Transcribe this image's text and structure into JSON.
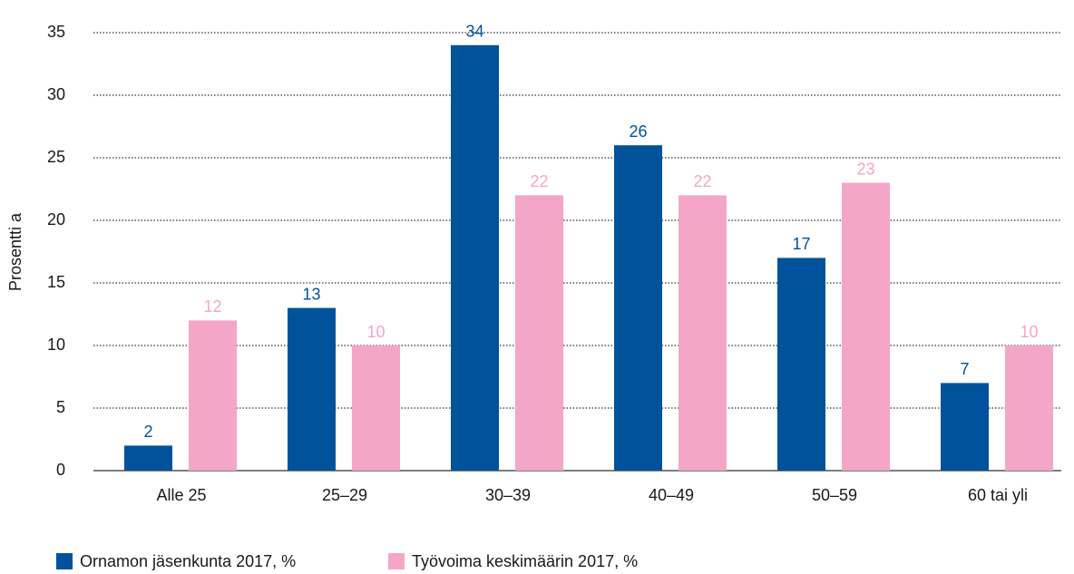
{
  "chart_data": {
    "type": "bar",
    "y_label": "Prosentti a",
    "categories": [
      "Alle 25",
      "25–29",
      "30–39",
      "40–49",
      "50–59",
      "60 tai yli"
    ],
    "series": [
      {
        "name": "Ornamon jäsenkunta 2017, %",
        "color": "#00529b",
        "values": [
          2,
          13,
          34,
          26,
          17,
          7
        ]
      },
      {
        "name": "Työvoima keskimäärin 2017, %",
        "color": "#f4a6c8",
        "values": [
          12,
          10,
          22,
          22,
          23,
          10
        ]
      }
    ],
    "ylim": [
      0,
      35
    ],
    "yticks": [
      0,
      5,
      10,
      15,
      20,
      25,
      30,
      35
    ],
    "grid": true
  }
}
